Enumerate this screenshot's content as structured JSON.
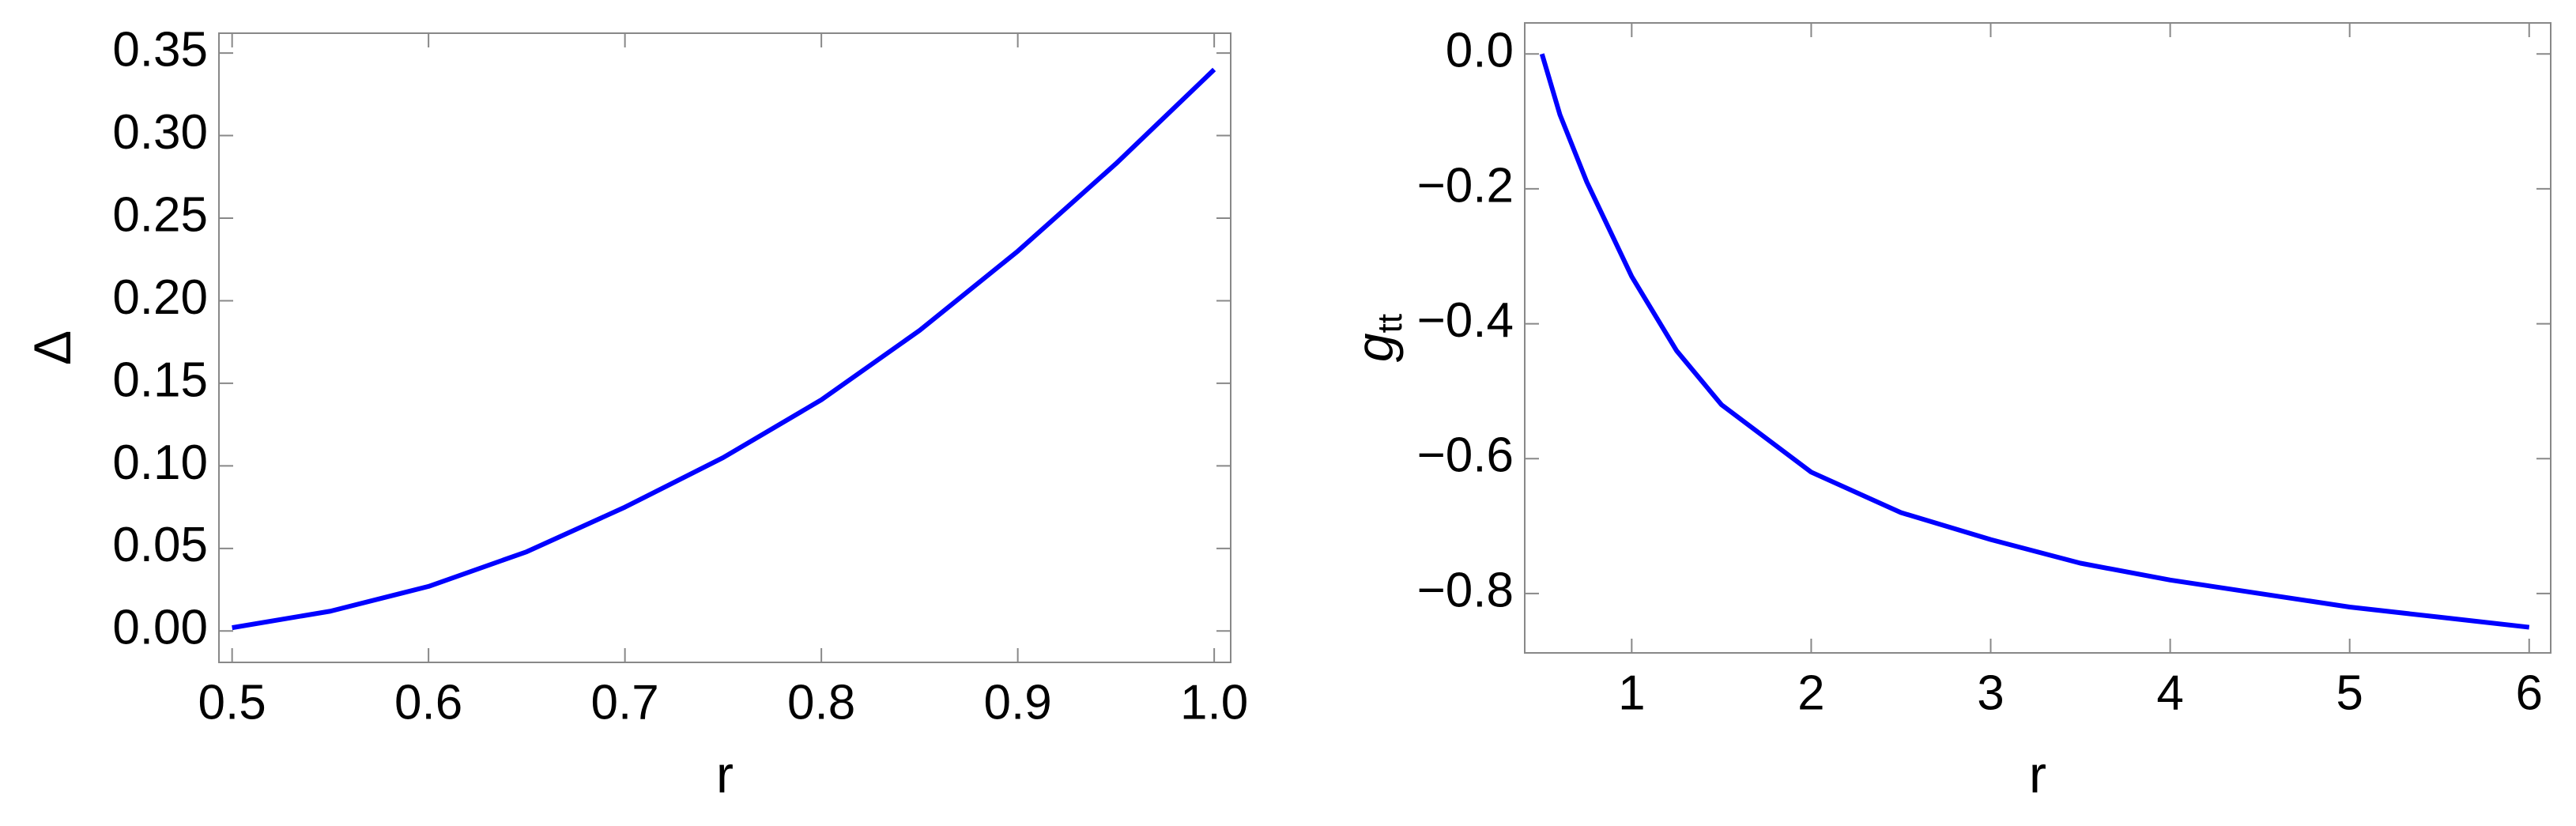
{
  "chart_data": [
    {
      "type": "line",
      "x_label": "r",
      "y_label": "Δ",
      "x": [
        0.5,
        0.55,
        0.6,
        0.65,
        0.7,
        0.75,
        0.8,
        0.85,
        0.9,
        0.95,
        1.0
      ],
      "series": [
        {
          "color": "#0000ff",
          "values": [
            0.002,
            0.012,
            0.027,
            0.048,
            0.075,
            0.105,
            0.14,
            0.182,
            0.23,
            0.283,
            0.34
          ]
        }
      ],
      "xlim": [
        0.4933,
        1.0084
      ],
      "ylim": [
        -0.019,
        0.362
      ],
      "xticks": [
        0.5,
        0.6,
        0.7,
        0.8,
        0.9,
        {
          "value": 1.0,
          "label": "1.0"
        }
      ],
      "yticks": [
        {
          "value": 0,
          "label": "0.00"
        },
        0.05,
        {
          "value": 0.1,
          "label": "0.10"
        },
        0.15,
        {
          "value": 0.2,
          "label": "0.20"
        },
        0.25,
        {
          "value": 0.3,
          "label": "0.30"
        },
        0.35
      ]
    },
    {
      "type": "line",
      "x_label": "r",
      "y_label": "g",
      "y_label_subscript": "tt",
      "x": [
        0.5,
        0.6,
        0.75,
        1,
        1.25,
        1.5,
        2,
        2.5,
        3,
        3.5,
        4,
        4.5,
        5,
        5.5,
        6
      ],
      "series": [
        {
          "color": "#0000ff",
          "values": [
            0.0,
            -0.09,
            -0.19,
            -0.33,
            -0.44,
            -0.52,
            -0.62,
            -0.68,
            -0.72,
            -0.755,
            -0.78,
            -0.8,
            -0.82,
            -0.835,
            -0.85
          ]
        }
      ],
      "xlim": [
        0.404,
        6.12
      ],
      "ylim": [
        -0.888,
        0.046
      ],
      "xticks": [
        1,
        2,
        3,
        4,
        5,
        6
      ],
      "yticks": [
        {
          "value": 0,
          "label": "0.0"
        },
        {
          "value": -0.2,
          "label": "−0.2"
        },
        {
          "value": -0.4,
          "label": "−0.4"
        },
        {
          "value": -0.6,
          "label": "−0.6"
        },
        {
          "value": -0.8,
          "label": "−0.8"
        }
      ]
    }
  ]
}
